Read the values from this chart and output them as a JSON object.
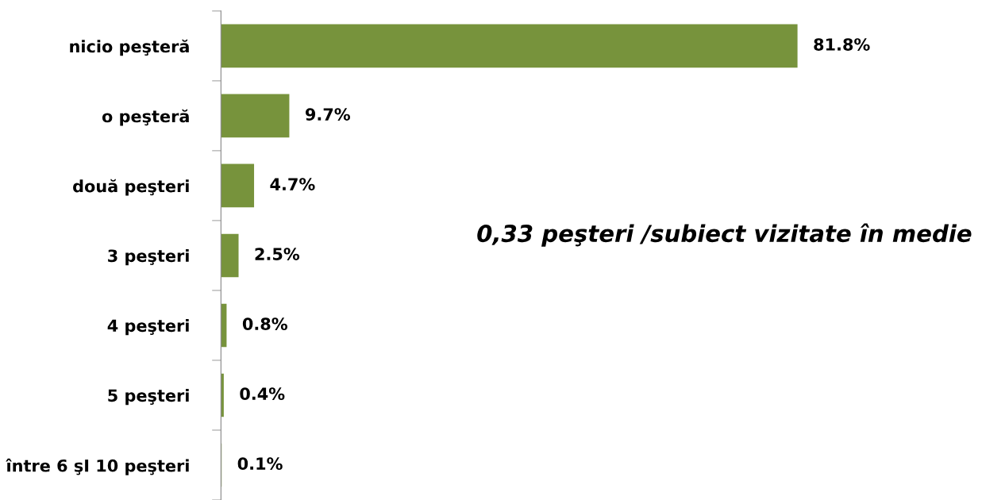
{
  "chart_data": {
    "type": "bar",
    "orientation": "horizontal",
    "categories": [
      "nicio peşteră",
      "o peşteră",
      "două peşteri",
      "3 peşteri",
      "4 peşteri",
      "5 peşteri",
      "între 6 şI 10 peşteri"
    ],
    "values": [
      81.8,
      9.7,
      4.7,
      2.5,
      0.8,
      0.4,
      0.1
    ],
    "value_labels": [
      "81.8%",
      "9.7%",
      "4.7%",
      "2.5%",
      "0.8%",
      "0.4%",
      "0.1%"
    ],
    "color": "#77933c",
    "annotations": [
      "0,33 peşteri /subiect vizitate în medie"
    ]
  }
}
